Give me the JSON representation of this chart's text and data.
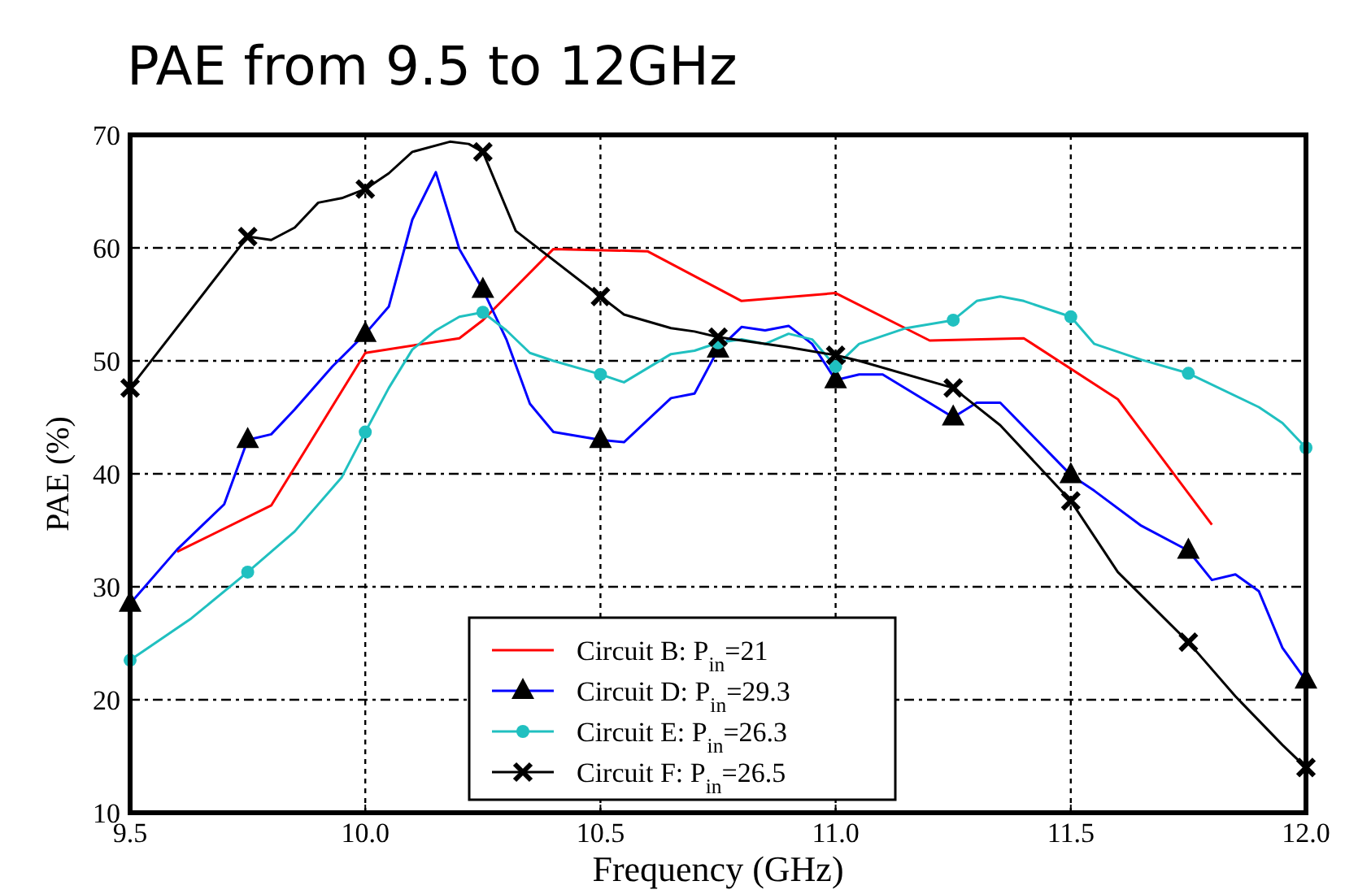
{
  "chart_data": {
    "type": "line",
    "title": "PAE from 9.5 to 12GHz",
    "xlabel": "Frequency (GHz)",
    "ylabel": "PAE (%)",
    "xlim": [
      9.5,
      12.0
    ],
    "xticks": [
      {
        "value": 9.5,
        "label": "9.5"
      },
      {
        "value": 10,
        "label": "10.0"
      },
      {
        "value": 10.5,
        "label": "10.5"
      },
      {
        "value": 11,
        "label": "11.0"
      },
      {
        "value": 11.5,
        "label": "11.5"
      },
      {
        "value": 12,
        "label": "12.0"
      }
    ],
    "ylim": [
      10,
      70
    ],
    "yticks": [
      10,
      20,
      30,
      40,
      50,
      60,
      70
    ],
    "grid": true,
    "legend": "bottom",
    "line_style": "solid",
    "series": [
      {
        "name": "Circuit B: P$_{in}$=21",
        "color": "#ff0000",
        "marker": "none",
        "x": [
          9.6,
          9.8,
          10.0,
          10.2,
          10.25,
          10.4,
          10.6,
          10.8,
          11.0,
          11.2,
          11.4,
          11.6,
          11.8
        ],
        "values": [
          33.1,
          37.2,
          50.7,
          52,
          53.6,
          59.9,
          59.7,
          55.3,
          56,
          51.8,
          52,
          46.6,
          35.5
        ]
      },
      {
        "name": "Circuit D: P$_{in}$=29.3",
        "color": "#0000ff",
        "marker": "none",
        "x": [
          9.5,
          9.6,
          9.7,
          9.75,
          9.8,
          9.85,
          9.93,
          10.0,
          10.05,
          10.1,
          10.15,
          10.2,
          10.25,
          10.3,
          10.35,
          10.4,
          10.5,
          10.55,
          10.65,
          10.7,
          10.75,
          10.8,
          10.85,
          10.9,
          10.95,
          11.0,
          11.05,
          11.1,
          11.25,
          11.3,
          11.35,
          11.5,
          11.55,
          11.65,
          11.75,
          11.8,
          11.85,
          11.9,
          11.95,
          12.0
        ],
        "values": [
          28.5,
          33.3,
          37.3,
          43,
          43.5,
          45.7,
          49.5,
          52.4,
          54.8,
          62.5,
          66.7,
          59.9,
          56.3,
          51.9,
          46.2,
          43.7,
          43,
          42.8,
          46.7,
          47.1,
          51,
          53,
          52.7,
          53.1,
          51.5,
          48.3,
          48.8,
          48.8,
          45,
          46.3,
          46.3,
          39.9,
          38.5,
          35.4,
          33.2,
          30.6,
          31.1,
          29.6,
          24.6,
          21.7
        ]
      },
      {
        "type": "scatter",
        "color": "#000000",
        "marker": "triangle",
        "x": [
          9.5,
          9.75,
          10.0,
          10.25,
          10.5,
          10.75,
          11.0,
          11.25,
          11.5,
          11.75,
          12.0
        ],
        "values": [
          28.5,
          43,
          52.4,
          56.3,
          43,
          51,
          48.3,
          45,
          39.9,
          33.2,
          21.7
        ]
      },
      {
        "name": "Circuit E: P$_{in}$=26.3",
        "color": "#20c0c0",
        "marker": "none",
        "x": [
          9.5,
          9.63,
          9.75,
          9.85,
          9.95,
          10.0,
          10.05,
          10.1,
          10.15,
          10.2,
          10.25,
          10.3,
          10.35,
          10.4,
          10.5,
          10.55,
          10.65,
          10.7,
          10.75,
          10.8,
          10.85,
          10.9,
          10.95,
          11.0,
          11.05,
          11.1,
          11.15,
          11.25,
          11.3,
          11.35,
          11.4,
          11.5,
          11.55,
          11.65,
          11.75,
          11.9,
          11.95,
          12.0
        ],
        "values": [
          23.5,
          27.2,
          31.3,
          34.9,
          39.7,
          43.7,
          47.6,
          51,
          52.7,
          53.9,
          54.3,
          52.7,
          50.7,
          50,
          48.8,
          48.1,
          50.6,
          50.9,
          51.6,
          51.9,
          51.5,
          52.4,
          51.9,
          49.5,
          51.5,
          52.2,
          52.9,
          53.6,
          55.3,
          55.7,
          55.3,
          53.9,
          51.5,
          50.1,
          48.9,
          45.9,
          44.5,
          42.3
        ]
      },
      {
        "type": "scatter",
        "color": "#20c0c0",
        "marker": "circle",
        "x": [
          9.5,
          9.75,
          10.0,
          10.25,
          10.5,
          10.75,
          11.0,
          11.25,
          11.5,
          11.75,
          12.0
        ],
        "values": [
          23.5,
          31.3,
          43.7,
          54.3,
          48.8,
          51.6,
          49.5,
          53.6,
          53.9,
          48.9,
          42.3
        ]
      },
      {
        "name": "Circuit F: P$_{in}$=26.5",
        "color": "#000000",
        "marker": "none",
        "x": [
          9.5,
          9.75,
          9.8,
          9.85,
          9.9,
          9.95,
          10.0,
          10.05,
          10.1,
          10.18,
          10.22,
          10.25,
          10.32,
          10.5,
          10.55,
          10.65,
          10.7,
          10.75,
          10.9,
          11.0,
          11.05,
          11.25,
          11.35,
          11.5,
          11.6,
          11.75,
          11.85,
          11.95,
          12.0
        ],
        "values": [
          47.6,
          61,
          60.7,
          61.8,
          64,
          64.4,
          65.2,
          66.6,
          68.5,
          69.4,
          69.2,
          68.5,
          61.5,
          55.7,
          54.1,
          52.9,
          52.6,
          52.1,
          51.2,
          50.5,
          50,
          47.6,
          44.3,
          37.6,
          31.3,
          25.1,
          20.3,
          16,
          14
        ]
      },
      {
        "type": "scatter",
        "color": "#000000",
        "marker": "cross",
        "x": [
          9.5,
          9.75,
          10.0,
          10.25,
          10.5,
          10.75,
          11.0,
          11.25,
          11.5,
          11.75,
          12.0
        ],
        "values": [
          47.6,
          61,
          65.2,
          68.5,
          55.7,
          52.1,
          50.5,
          47.6,
          37.6,
          25.1,
          14
        ]
      }
    ]
  }
}
